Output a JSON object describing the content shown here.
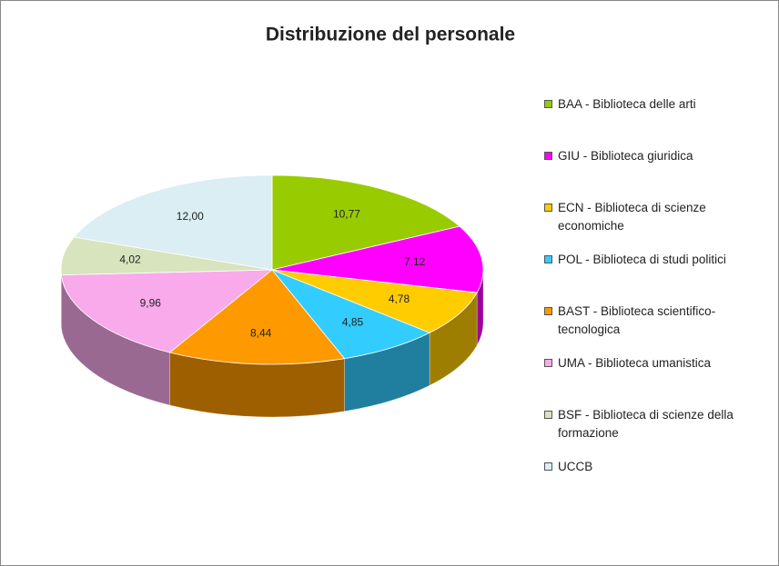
{
  "chart_data": {
    "type": "pie3d",
    "title": "Distribuzione del personale",
    "categories": [
      "BAA - Biblioteca delle arti",
      "GIU - Biblioteca giuridica",
      "ECN - Biblioteca di scienze economiche",
      "POL - Biblioteca di studi politici",
      "BAST - Biblioteca scientifico-tecnologica",
      "UMA - Biblioteca umanistica",
      "BSF - Biblioteca di scienze della formazione",
      "UCCB"
    ],
    "values": [
      10.77,
      7.12,
      4.78,
      4.85,
      8.44,
      9.96,
      4.02,
      12.0
    ],
    "value_labels": [
      "10,77",
      "7,12",
      "4,78",
      "4,85",
      "8,44",
      "9,96",
      "4,02",
      "12,00"
    ],
    "colors": [
      "#99cc00",
      "#ff00ff",
      "#ffcc00",
      "#33ccff",
      "#ff9900",
      "#f9aaea",
      "#d7e4bd",
      "#daeef3"
    ],
    "legend": "right"
  }
}
